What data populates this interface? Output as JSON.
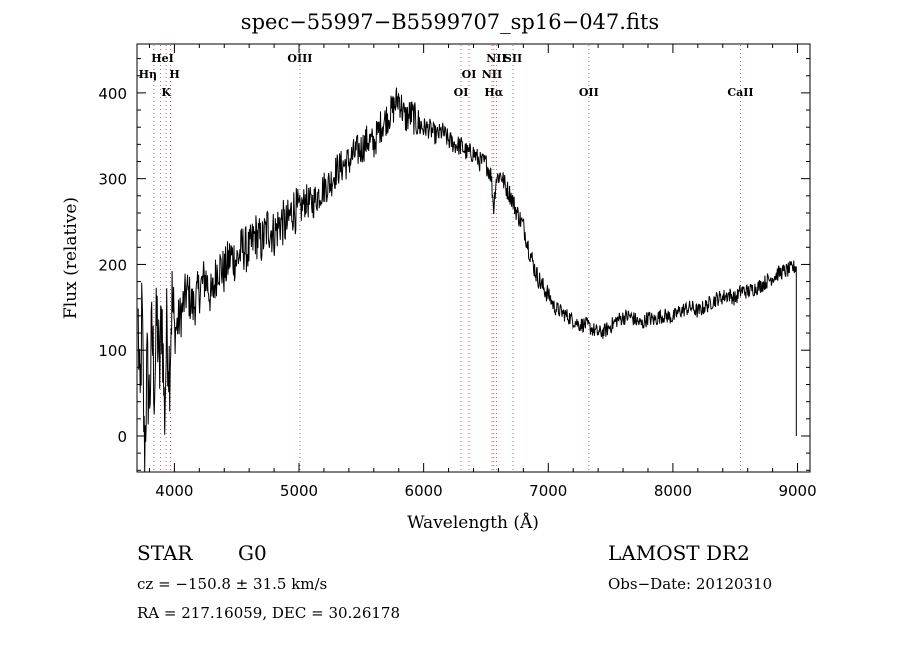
{
  "chart_data": {
    "type": "line",
    "title": "spec−55997−B5599707_sp16−047.fits",
    "xlabel": "Wavelength (Å)",
    "ylabel": "Flux (relative)",
    "xlim": [
      3700,
      9100
    ],
    "ylim": [
      -42,
      457
    ],
    "x_ticks": [
      4000,
      5000,
      6000,
      7000,
      8000,
      9000
    ],
    "y_ticks": [
      0,
      100,
      200,
      300,
      400
    ],
    "grid": false,
    "legend": "none",
    "line_color": "#000000",
    "marker_color": "#e06060",
    "series": [
      {
        "x": [
          3710,
          3725,
          3740,
          3760,
          3780,
          3800,
          3820,
          3840,
          3860,
          3880,
          3900,
          3920,
          3940,
          3960,
          3980,
          4000,
          4050,
          4100,
          4150,
          4200,
          4250,
          4300,
          4350,
          4400,
          4450,
          4500,
          4550,
          4600,
          4650,
          4700,
          4750,
          4800,
          4850,
          4900,
          4950,
          5000,
          5050,
          5100,
          5150,
          5200,
          5250,
          5300,
          5350,
          5400,
          5450,
          5500,
          5550,
          5600,
          5650,
          5700,
          5750,
          5800,
          5850,
          5900,
          5950,
          6000,
          6050,
          6100,
          6150,
          6200,
          6250,
          6300,
          6350,
          6400,
          6450,
          6500,
          6540,
          6563,
          6580,
          6620,
          6660,
          6700,
          6750,
          6800,
          6850,
          6900,
          6950,
          7000,
          7050,
          7100,
          7150,
          7200,
          7250,
          7300,
          7350,
          7400,
          7450,
          7500,
          7550,
          7600,
          7650,
          7700,
          7750,
          7800,
          7850,
          7900,
          7950,
          8000,
          8050,
          8100,
          8150,
          8200,
          8250,
          8300,
          8350,
          8400,
          8450,
          8500,
          8550,
          8600,
          8650,
          8700,
          8750,
          8800,
          8850,
          8900,
          8950,
          8990
        ],
        "values": [
          130,
          20,
          150,
          -30,
          80,
          40,
          120,
          60,
          140,
          70,
          150,
          20,
          130,
          80,
          160,
          120,
          140,
          170,
          150,
          170,
          185,
          160,
          200,
          190,
          210,
          205,
          220,
          215,
          235,
          225,
          245,
          235,
          250,
          245,
          265,
          260,
          275,
          270,
          280,
          290,
          295,
          310,
          315,
          320,
          330,
          335,
          345,
          340,
          360,
          370,
          380,
          395,
          370,
          375,
          365,
          360,
          358,
          350,
          355,
          345,
          340,
          338,
          330,
          330,
          320,
          318,
          305,
          265,
          300,
          305,
          290,
          280,
          260,
          245,
          215,
          190,
          175,
          165,
          150,
          145,
          140,
          135,
          130,
          130,
          125,
          120,
          122,
          128,
          135,
          138,
          140,
          135,
          130,
          138,
          135,
          140,
          140,
          138,
          145,
          148,
          150,
          145,
          150,
          155,
          160,
          162,
          165,
          160,
          170,
          168,
          172,
          175,
          180,
          185,
          190,
          192,
          195,
          198
        ]
      }
    ],
    "lines": [
      {
        "label": "HeI",
        "x": 3889
      },
      {
        "label": "Hη",
        "x": 3835
      },
      {
        "label": "H",
        "x": 3969
      },
      {
        "label": "K",
        "x": 3934
      },
      {
        "label": "OIII",
        "x": 5007
      },
      {
        "label": "OI",
        "x": 6364
      },
      {
        "label": "OI",
        "x": 6300
      },
      {
        "label": "NII",
        "x": 6584
      },
      {
        "label": "SII",
        "x": 6717
      },
      {
        "label": "NII",
        "x": 6548
      },
      {
        "label": "Hα",
        "x": 6563
      },
      {
        "label": "OII",
        "x": 7325
      },
      {
        "label": "CaII",
        "x": 8542
      }
    ]
  },
  "info": {
    "object_class": "STAR",
    "subclass": "G0",
    "survey": "LAMOST DR2",
    "redshift": "cz = −150.8 ± 31.5 km/s",
    "obs_date": "Obs−Date: 20120310",
    "coords": "RA = 217.16059, DEC =  30.26178"
  }
}
